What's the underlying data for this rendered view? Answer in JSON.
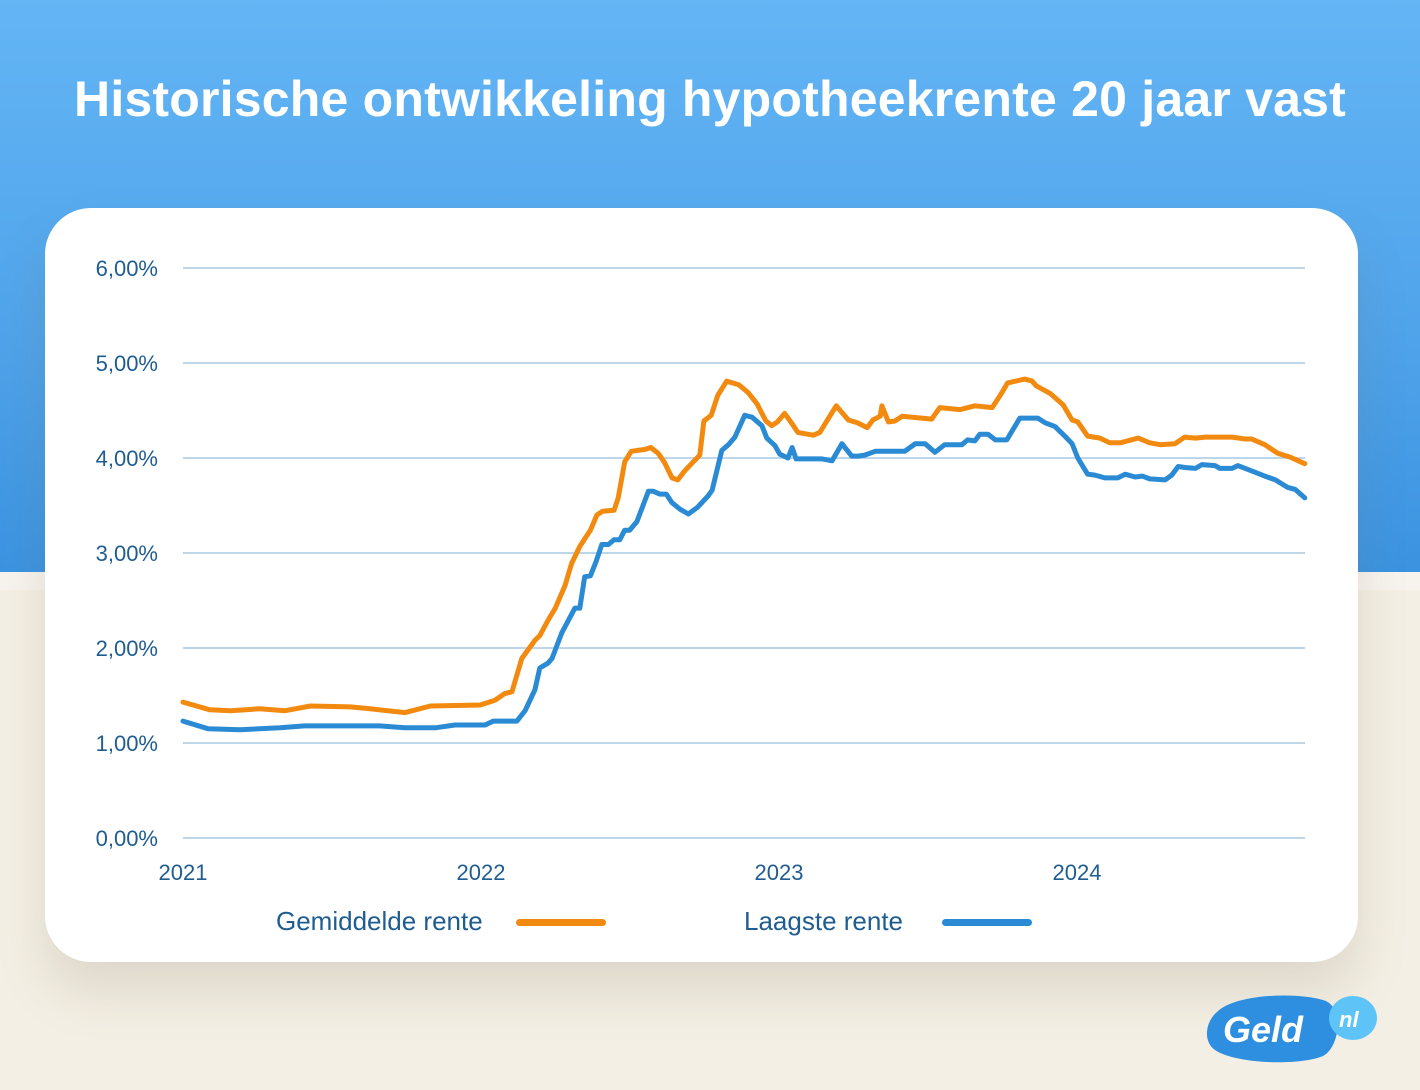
{
  "title": "Historische ontwikkeling hypotheekrente 20 jaar vast",
  "logo_text": "Geld.nl",
  "chart_data": {
    "type": "line",
    "title": "Historische ontwikkeling hypotheekrente 20 jaar vast",
    "xlabel": "",
    "ylabel": "",
    "xlim": [
      "2021-01-01",
      "2024-10-06"
    ],
    "ylim": [
      0,
      6
    ],
    "x_ticks": [
      {
        "date": "2021-01-01",
        "label": "2021"
      },
      {
        "date": "2022-01-01",
        "label": "2022"
      },
      {
        "date": "2023-01-01",
        "label": "2023"
      },
      {
        "date": "2024-01-01",
        "label": "2024"
      }
    ],
    "y_ticks": [
      {
        "value": 0,
        "label": "0,00%"
      },
      {
        "value": 1,
        "label": "1,00%"
      },
      {
        "value": 2,
        "label": "2,00%"
      },
      {
        "value": 3,
        "label": "3,00%"
      },
      {
        "value": 4,
        "label": "4,00%"
      },
      {
        "value": 5,
        "label": "5,00%"
      },
      {
        "value": 6,
        "label": "6,00%"
      }
    ],
    "grid": "horizontal",
    "legend_position": "bottom",
    "series": [
      {
        "name": "Gemiddelde rente",
        "color": "#f28a10",
        "points": [
          [
            "2021-01-01",
            1.43
          ],
          [
            "2021-02-03",
            1.35
          ],
          [
            "2021-02-28",
            1.34
          ],
          [
            "2021-04-05",
            1.36
          ],
          [
            "2021-05-06",
            1.34
          ],
          [
            "2021-06-06",
            1.39
          ],
          [
            "2021-07-25",
            1.38
          ],
          [
            "2021-08-18",
            1.36
          ],
          [
            "2021-09-30",
            1.32
          ],
          [
            "2021-10-31",
            1.39
          ],
          [
            "2021-12-31",
            1.4
          ],
          [
            "2022-01-18",
            1.45
          ],
          [
            "2022-01-30",
            1.52
          ],
          [
            "2022-02-08",
            1.54
          ],
          [
            "2022-02-20",
            1.89
          ],
          [
            "2022-03-08",
            2.08
          ],
          [
            "2022-03-14",
            2.13
          ],
          [
            "2022-03-24",
            2.29
          ],
          [
            "2022-04-02",
            2.42
          ],
          [
            "2022-04-14",
            2.66
          ],
          [
            "2022-04-22",
            2.89
          ],
          [
            "2022-05-02",
            3.07
          ],
          [
            "2022-05-15",
            3.24
          ],
          [
            "2022-05-23",
            3.4
          ],
          [
            "2022-05-30",
            3.44
          ],
          [
            "2022-06-13",
            3.45
          ],
          [
            "2022-06-18",
            3.58
          ],
          [
            "2022-06-26",
            3.96
          ],
          [
            "2022-07-04",
            4.07
          ],
          [
            "2022-07-21",
            4.09
          ],
          [
            "2022-07-28",
            4.11
          ],
          [
            "2022-08-06",
            4.05
          ],
          [
            "2022-08-14",
            3.95
          ],
          [
            "2022-08-23",
            3.79
          ],
          [
            "2022-08-30",
            3.77
          ],
          [
            "2022-09-07",
            3.86
          ],
          [
            "2022-09-18",
            3.96
          ],
          [
            "2022-09-26",
            4.03
          ],
          [
            "2022-10-01",
            4.39
          ],
          [
            "2022-10-10",
            4.45
          ],
          [
            "2022-10-18",
            4.66
          ],
          [
            "2022-10-29",
            4.81
          ],
          [
            "2022-11-13",
            4.77
          ],
          [
            "2022-11-24",
            4.69
          ],
          [
            "2022-12-05",
            4.57
          ],
          [
            "2022-12-16",
            4.39
          ],
          [
            "2022-12-23",
            4.34
          ],
          [
            "2022-12-30",
            4.38
          ],
          [
            "2023-01-08",
            4.47
          ],
          [
            "2023-01-17",
            4.36
          ],
          [
            "2023-01-24",
            4.27
          ],
          [
            "2023-02-12",
            4.24
          ],
          [
            "2023-02-20",
            4.27
          ],
          [
            "2023-03-12",
            4.55
          ],
          [
            "2023-03-27",
            4.4
          ],
          [
            "2023-04-07",
            4.37
          ],
          [
            "2023-04-19",
            4.32
          ],
          [
            "2023-04-26",
            4.4
          ],
          [
            "2023-05-05",
            4.44
          ],
          [
            "2023-05-07",
            4.55
          ],
          [
            "2023-05-15",
            4.38
          ],
          [
            "2023-05-23",
            4.39
          ],
          [
            "2023-06-01",
            4.44
          ],
          [
            "2023-07-07",
            4.41
          ],
          [
            "2023-07-17",
            4.53
          ],
          [
            "2023-08-11",
            4.51
          ],
          [
            "2023-08-29",
            4.55
          ],
          [
            "2023-09-19",
            4.53
          ],
          [
            "2023-09-29",
            4.66
          ],
          [
            "2023-10-08",
            4.79
          ],
          [
            "2023-10-29",
            4.83
          ],
          [
            "2023-11-07",
            4.81
          ],
          [
            "2023-11-12",
            4.76
          ],
          [
            "2023-11-29",
            4.68
          ],
          [
            "2023-12-15",
            4.56
          ],
          [
            "2023-12-26",
            4.4
          ],
          [
            "2024-01-02",
            4.38
          ],
          [
            "2024-01-14",
            4.23
          ],
          [
            "2024-01-29",
            4.21
          ],
          [
            "2024-02-10",
            4.16
          ],
          [
            "2024-02-23",
            4.16
          ],
          [
            "2024-03-16",
            4.21
          ],
          [
            "2024-03-30",
            4.16
          ],
          [
            "2024-04-12",
            4.14
          ],
          [
            "2024-04-30",
            4.15
          ],
          [
            "2024-05-12",
            4.22
          ],
          [
            "2024-05-25",
            4.21
          ],
          [
            "2024-06-06",
            4.22
          ],
          [
            "2024-06-22",
            4.22
          ],
          [
            "2024-07-09",
            4.22
          ],
          [
            "2024-07-25",
            4.2
          ],
          [
            "2024-08-02",
            4.2
          ],
          [
            "2024-08-18",
            4.14
          ],
          [
            "2024-09-03",
            4.05
          ],
          [
            "2024-09-18",
            4.01
          ],
          [
            "2024-10-06",
            3.94
          ]
        ]
      },
      {
        "name": "Laagste rente",
        "color": "#2a8bd4",
        "points": [
          [
            "2021-01-01",
            1.23
          ],
          [
            "2021-02-01",
            1.15
          ],
          [
            "2021-03-12",
            1.14
          ],
          [
            "2021-04-30",
            1.16
          ],
          [
            "2021-05-30",
            1.18
          ],
          [
            "2021-08-30",
            1.18
          ],
          [
            "2021-09-30",
            1.16
          ],
          [
            "2021-11-06",
            1.16
          ],
          [
            "2021-11-30",
            1.19
          ],
          [
            "2022-01-06",
            1.19
          ],
          [
            "2022-01-16",
            1.23
          ],
          [
            "2022-02-14",
            1.23
          ],
          [
            "2022-02-24",
            1.34
          ],
          [
            "2022-03-08",
            1.56
          ],
          [
            "2022-03-14",
            1.79
          ],
          [
            "2022-03-24",
            1.84
          ],
          [
            "2022-03-29",
            1.89
          ],
          [
            "2022-04-10",
            2.16
          ],
          [
            "2022-04-26",
            2.42
          ],
          [
            "2022-05-02",
            2.42
          ],
          [
            "2022-05-08",
            2.75
          ],
          [
            "2022-05-15",
            2.76
          ],
          [
            "2022-05-22",
            2.91
          ],
          [
            "2022-05-29",
            3.09
          ],
          [
            "2022-06-06",
            3.09
          ],
          [
            "2022-06-13",
            3.14
          ],
          [
            "2022-06-20",
            3.14
          ],
          [
            "2022-06-26",
            3.24
          ],
          [
            "2022-07-02",
            3.24
          ],
          [
            "2022-07-11",
            3.33
          ],
          [
            "2022-07-25",
            3.65
          ],
          [
            "2022-07-31",
            3.65
          ],
          [
            "2022-08-08",
            3.62
          ],
          [
            "2022-08-16",
            3.62
          ],
          [
            "2022-08-23",
            3.53
          ],
          [
            "2022-09-02",
            3.46
          ],
          [
            "2022-09-12",
            3.41
          ],
          [
            "2022-09-23",
            3.48
          ],
          [
            "2022-10-06",
            3.6
          ],
          [
            "2022-10-11",
            3.66
          ],
          [
            "2022-10-23",
            4.08
          ],
          [
            "2022-10-31",
            4.14
          ],
          [
            "2022-11-08",
            4.22
          ],
          [
            "2022-11-20",
            4.45
          ],
          [
            "2022-11-29",
            4.43
          ],
          [
            "2022-12-11",
            4.34
          ],
          [
            "2022-12-17",
            4.21
          ],
          [
            "2022-12-27",
            4.13
          ],
          [
            "2023-01-02",
            4.04
          ],
          [
            "2023-01-12",
            4.0
          ],
          [
            "2023-01-17",
            4.11
          ],
          [
            "2023-01-22",
            3.99
          ],
          [
            "2023-02-23",
            3.99
          ],
          [
            "2023-03-07",
            3.97
          ],
          [
            "2023-03-19",
            4.15
          ],
          [
            "2023-03-31",
            4.02
          ],
          [
            "2023-04-08",
            4.02
          ],
          [
            "2023-04-16",
            4.03
          ],
          [
            "2023-04-29",
            4.07
          ],
          [
            "2023-06-04",
            4.07
          ],
          [
            "2023-06-17",
            4.15
          ],
          [
            "2023-06-29",
            4.15
          ],
          [
            "2023-07-11",
            4.06
          ],
          [
            "2023-07-23",
            4.14
          ],
          [
            "2023-08-13",
            4.14
          ],
          [
            "2023-08-20",
            4.19
          ],
          [
            "2023-08-29",
            4.18
          ],
          [
            "2023-09-04",
            4.25
          ],
          [
            "2023-09-14",
            4.25
          ],
          [
            "2023-09-23",
            4.19
          ],
          [
            "2023-10-07",
            4.19
          ],
          [
            "2023-10-23",
            4.42
          ],
          [
            "2023-11-14",
            4.42
          ],
          [
            "2023-11-23",
            4.37
          ],
          [
            "2023-12-05",
            4.33
          ],
          [
            "2023-12-17",
            4.23
          ],
          [
            "2023-12-26",
            4.15
          ],
          [
            "2024-01-02",
            4.0
          ],
          [
            "2024-01-14",
            3.83
          ],
          [
            "2024-01-23",
            3.82
          ],
          [
            "2024-02-04",
            3.79
          ],
          [
            "2024-02-20",
            3.79
          ],
          [
            "2024-02-29",
            3.83
          ],
          [
            "2024-03-12",
            3.8
          ],
          [
            "2024-03-21",
            3.81
          ],
          [
            "2024-03-30",
            3.78
          ],
          [
            "2024-04-18",
            3.77
          ],
          [
            "2024-04-26",
            3.82
          ],
          [
            "2024-05-04",
            3.91
          ],
          [
            "2024-05-12",
            3.9
          ],
          [
            "2024-05-25",
            3.89
          ],
          [
            "2024-06-02",
            3.93
          ],
          [
            "2024-06-18",
            3.92
          ],
          [
            "2024-06-24",
            3.89
          ],
          [
            "2024-07-09",
            3.89
          ],
          [
            "2024-07-16",
            3.92
          ],
          [
            "2024-07-31",
            3.87
          ],
          [
            "2024-08-18",
            3.81
          ],
          [
            "2024-08-31",
            3.77
          ],
          [
            "2024-09-15",
            3.69
          ],
          [
            "2024-09-24",
            3.67
          ],
          [
            "2024-10-06",
            3.58
          ]
        ]
      }
    ]
  }
}
